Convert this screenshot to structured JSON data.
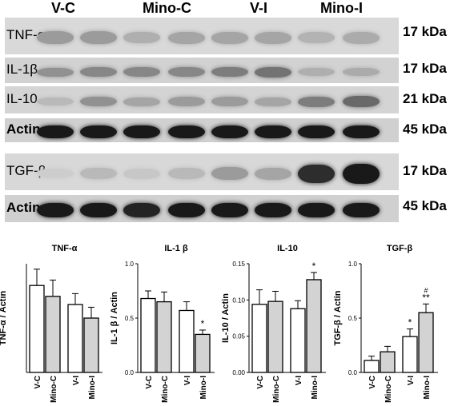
{
  "lanes": [
    "V-C",
    "Mino-C",
    "V-I",
    "Mino-I"
  ],
  "blots": [
    {
      "label": "TNF-α",
      "kda": "17 kDa",
      "bg": "#d9d9d9",
      "intensity": [
        0.3,
        0.3,
        0.2,
        0.25,
        0.25,
        0.25,
        0.18,
        0.22
      ]
    },
    {
      "label": "IL-1β",
      "kda": "17 kDa",
      "bg": "#d2d2d2",
      "intensity": [
        0.35,
        0.4,
        0.4,
        0.4,
        0.45,
        0.5,
        0.2,
        0.22
      ]
    },
    {
      "label": "IL-10",
      "kda": "21 kDa",
      "bg": "#d4d4d4",
      "intensity": [
        0.15,
        0.35,
        0.25,
        0.3,
        0.3,
        0.25,
        0.45,
        0.55
      ]
    },
    {
      "label": "Actin",
      "kda": "45 kDa",
      "bg": "#d0d0d0",
      "intensity": [
        0.95,
        0.95,
        0.95,
        0.95,
        0.95,
        0.95,
        0.95,
        0.95
      ]
    },
    {
      "label": "TGF-β",
      "kda": "17 kDa",
      "bg": "#d8d8d8",
      "intensity": [
        0.05,
        0.15,
        0.08,
        0.15,
        0.3,
        0.25,
        0.85,
        0.95
      ]
    },
    {
      "label": "Actin",
      "kda": "45 kDa",
      "bg": "#d0d0d0",
      "intensity": [
        0.95,
        0.95,
        0.9,
        0.95,
        0.95,
        0.95,
        0.95,
        0.95
      ]
    }
  ],
  "chart_data": [
    {
      "type": "bar",
      "title": "TNF-α",
      "ylabel": "TNF-α / Actin",
      "categories": [
        "V-C",
        "Mino-C",
        "V-I",
        "Mino-I"
      ],
      "values": [
        0.32,
        0.28,
        0.25,
        0.2
      ],
      "errors": [
        0.06,
        0.06,
        0.04,
        0.04
      ],
      "ylim": [
        0,
        0.4
      ],
      "yticks": [],
      "annotations": [
        "",
        "",
        "",
        ""
      ]
    },
    {
      "type": "bar",
      "title": "IL-1 β",
      "ylabel": "IL-1 β / Actin",
      "categories": [
        "V-C",
        "Mino-C",
        "V-I",
        "Mino-I"
      ],
      "values": [
        0.68,
        0.65,
        0.57,
        0.35
      ],
      "errors": [
        0.07,
        0.09,
        0.08,
        0.04
      ],
      "ylim": [
        0,
        1.0
      ],
      "yticks": [
        "0.0",
        "0.5",
        "1.0"
      ],
      "annotations": [
        "",
        "",
        "",
        "*"
      ]
    },
    {
      "type": "bar",
      "title": "IL-10",
      "ylabel": "IL-10 / Actin",
      "categories": [
        "V-C",
        "Mino-C",
        "V-I",
        "Mino-I"
      ],
      "values": [
        0.094,
        0.098,
        0.088,
        0.128
      ],
      "errors": [
        0.02,
        0.014,
        0.011,
        0.01
      ],
      "ylim": [
        0,
        0.15
      ],
      "yticks": [
        "0.00",
        "0.05",
        "0.10",
        "0.15"
      ],
      "annotations": [
        "",
        "",
        "",
        "*"
      ]
    },
    {
      "type": "bar",
      "title": "TGF-β",
      "ylabel": "TGF-β / Actin",
      "categories": [
        "V-C",
        "Mino-C",
        "V-I",
        "Mino-I"
      ],
      "values": [
        0.11,
        0.19,
        0.33,
        0.55
      ],
      "errors": [
        0.04,
        0.05,
        0.07,
        0.08
      ],
      "ylim": [
        0,
        1.0
      ],
      "yticks": [
        "0.0",
        "0.5",
        "1.0"
      ],
      "annotations": [
        "",
        "",
        "*",
        "#\n**"
      ]
    }
  ]
}
